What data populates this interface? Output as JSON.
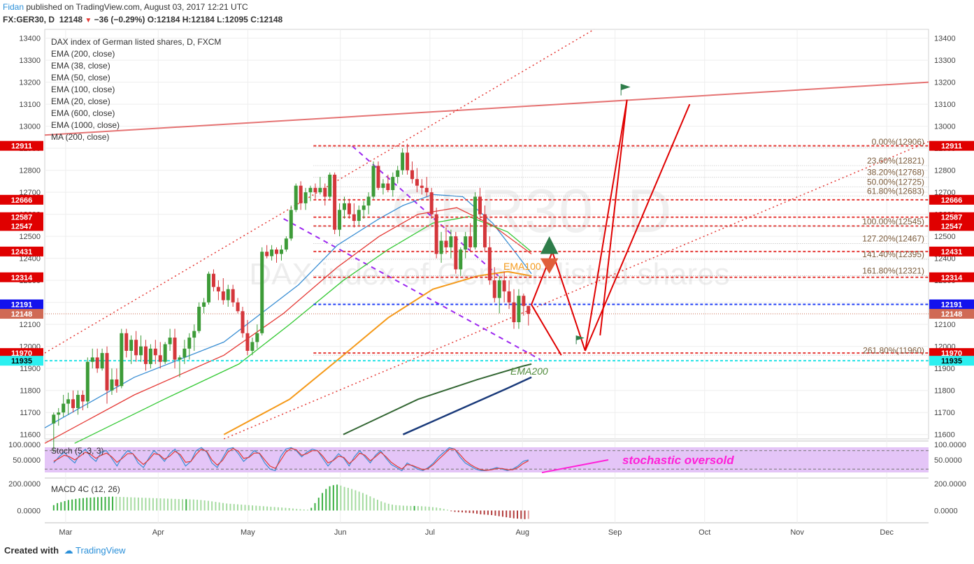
{
  "header": {
    "author": "Fidan",
    "published": "published on TradingView.com, August 03, 2017 12:21 UTC",
    "symbol": "FX:GER30, D",
    "last": "12148",
    "change": "−36 (−0.29%)",
    "open": "O:12184",
    "high": "H:12184",
    "low": "L:12095",
    "close": "C:12148"
  },
  "legend": {
    "title": "DAX index of German listed shares, D, FXCM",
    "studies": [
      "EMA (200, close)",
      "EMA (38, close)",
      "EMA (50, close)",
      "EMA (100, close)",
      "EMA (20, close)",
      "EMA (600, close)",
      "EMA (1000, close)",
      "MA (200, close)"
    ]
  },
  "watermark": {
    "symbol": "GER30, D",
    "description": "DAX index of German listed shares"
  },
  "footer": {
    "created_with": "Created with",
    "brand": "TradingView"
  },
  "colors": {
    "up": "#3d9b38",
    "down": "#d4363b",
    "red_level": "#e53935",
    "blue_level": "#1e3cf5",
    "cyan_level": "#26e3e6",
    "trend_red": "#e57373",
    "ema20": "#3b8fd4",
    "ema38": "#e53935",
    "ema50": "#34c934",
    "ema100": "#f59a1a",
    "ema200": "#336633",
    "ema600": "#1a3a7a",
    "stoch_fill": "#e4c5f7",
    "annotation": "#ff20d8",
    "flag": "#2e7d4a"
  },
  "chart_data": {
    "type": "candlestick",
    "title": "DAX index of German listed shares, D, FXCM",
    "price_axis": {
      "ticks": [
        11600,
        11700,
        11800,
        11900,
        12000,
        12100,
        12200,
        12300,
        12400,
        12500,
        12600,
        12700,
        12800,
        12900,
        13000,
        13100,
        13200,
        13300,
        13400
      ],
      "range": [
        11580,
        13440
      ]
    },
    "time_axis": {
      "labels": [
        "Mar",
        "Apr",
        "May",
        "Jun",
        "Jul",
        "Aug",
        "Sep",
        "Oct",
        "Nov",
        "Dec"
      ],
      "range_days": [
        -160,
        136
      ]
    },
    "candles_ohlc": [
      [
        11650,
        11700,
        11520,
        11690
      ],
      [
        11690,
        11720,
        11640,
        11700
      ],
      [
        11700,
        11780,
        11680,
        11740
      ],
      [
        11740,
        11790,
        11690,
        11760
      ],
      [
        11760,
        11800,
        11700,
        11720
      ],
      [
        11720,
        11800,
        11690,
        11780
      ],
      [
        11780,
        11800,
        11710,
        11750
      ],
      [
        11750,
        11950,
        11720,
        11930
      ],
      [
        11930,
        11990,
        11900,
        11950
      ],
      [
        11950,
        11990,
        11880,
        11900
      ],
      [
        11900,
        11990,
        11890,
        11970
      ],
      [
        11970,
        12000,
        11740,
        11800
      ],
      [
        11800,
        11900,
        11780,
        11850
      ],
      [
        11850,
        11900,
        11790,
        11820
      ],
      [
        11820,
        12080,
        11810,
        12060
      ],
      [
        12060,
        12080,
        11950,
        11980
      ],
      [
        11980,
        12050,
        11920,
        12030
      ],
      [
        12030,
        12070,
        11930,
        11960
      ],
      [
        11960,
        12050,
        11930,
        12000
      ],
      [
        12000,
        12030,
        11890,
        11920
      ],
      [
        11920,
        12010,
        11900,
        11990
      ],
      [
        11990,
        12030,
        11920,
        11960
      ],
      [
        11960,
        12020,
        11900,
        11930
      ],
      [
        11930,
        12020,
        11920,
        12010
      ],
      [
        12010,
        12080,
        11980,
        12040
      ],
      [
        12040,
        12080,
        11900,
        11940
      ],
      [
        11940,
        11960,
        11860,
        11950
      ],
      [
        11950,
        12030,
        11920,
        11990
      ],
      [
        11990,
        12060,
        11940,
        12040
      ],
      [
        12040,
        12100,
        11980,
        12070
      ],
      [
        12070,
        12200,
        12060,
        12180
      ],
      [
        12180,
        12220,
        12150,
        12200
      ],
      [
        12200,
        12340,
        12190,
        12330
      ],
      [
        12330,
        12350,
        12250,
        12270
      ],
      [
        12270,
        12300,
        12210,
        12250
      ],
      [
        12250,
        12310,
        12190,
        12210
      ],
      [
        12210,
        12280,
        12180,
        12260
      ],
      [
        12260,
        12280,
        12180,
        12200
      ],
      [
        12200,
        12220,
        12150,
        12160
      ],
      [
        12160,
        12180,
        12040,
        12060
      ],
      [
        12060,
        12120,
        11960,
        11980
      ],
      [
        11980,
        12040,
        11960,
        12020
      ],
      [
        12020,
        12100,
        11990,
        12060
      ],
      [
        12060,
        12450,
        12050,
        12430
      ],
      [
        12430,
        12460,
        12400,
        12410
      ],
      [
        12410,
        12460,
        12390,
        12440
      ],
      [
        12440,
        12450,
        12380,
        12420
      ],
      [
        12420,
        12460,
        12390,
        12440
      ],
      [
        12440,
        12500,
        12430,
        12490
      ],
      [
        12490,
        12640,
        12480,
        12620
      ],
      [
        12620,
        12740,
        12610,
        12730
      ],
      [
        12730,
        12750,
        12620,
        12650
      ],
      [
        12650,
        12720,
        12620,
        12700
      ],
      [
        12700,
        12730,
        12660,
        12720
      ],
      [
        12720,
        12740,
        12670,
        12700
      ],
      [
        12700,
        12770,
        12690,
        12720
      ],
      [
        12720,
        12740,
        12640,
        12680
      ],
      [
        12680,
        12790,
        12670,
        12780
      ],
      [
        12780,
        12790,
        12510,
        12530
      ],
      [
        12530,
        12650,
        12500,
        12620
      ],
      [
        12620,
        12680,
        12580,
        12650
      ],
      [
        12650,
        12670,
        12580,
        12600
      ],
      [
        12600,
        12650,
        12540,
        12570
      ],
      [
        12570,
        12640,
        12550,
        12620
      ],
      [
        12620,
        12660,
        12580,
        12640
      ],
      [
        12640,
        12700,
        12600,
        12680
      ],
      [
        12680,
        12840,
        12670,
        12820
      ],
      [
        12820,
        12840,
        12710,
        12720
      ],
      [
        12720,
        12760,
        12690,
        12740
      ],
      [
        12740,
        12780,
        12700,
        12710
      ],
      [
        12710,
        12790,
        12680,
        12770
      ],
      [
        12770,
        12820,
        12740,
        12800
      ],
      [
        12800,
        12900,
        12780,
        12880
      ],
      [
        12880,
        12920,
        12780,
        12800
      ],
      [
        12800,
        12840,
        12740,
        12760
      ],
      [
        12760,
        12810,
        12700,
        12730
      ],
      [
        12730,
        12760,
        12690,
        12720
      ],
      [
        12720,
        12770,
        12680,
        12700
      ],
      [
        12700,
        12720,
        12580,
        12600
      ],
      [
        12600,
        12630,
        12400,
        12420
      ],
      [
        12420,
        12520,
        12380,
        12480
      ],
      [
        12480,
        12540,
        12420,
        12450
      ],
      [
        12450,
        12530,
        12400,
        12500
      ],
      [
        12500,
        12520,
        12330,
        12350
      ],
      [
        12350,
        12450,
        12320,
        12440
      ],
      [
        12440,
        12520,
        12400,
        12500
      ],
      [
        12500,
        12560,
        12430,
        12450
      ],
      [
        12450,
        12700,
        12440,
        12680
      ],
      [
        12680,
        12720,
        12570,
        12600
      ],
      [
        12600,
        12640,
        12430,
        12450
      ],
      [
        12450,
        12500,
        12280,
        12300
      ],
      [
        12300,
        12360,
        12200,
        12220
      ],
      [
        12220,
        12320,
        12150,
        12300
      ],
      [
        12300,
        12340,
        12200,
        12250
      ],
      [
        12250,
        12300,
        12170,
        12200
      ],
      [
        12200,
        12260,
        12080,
        12110
      ],
      [
        12110,
        12260,
        12080,
        12230
      ],
      [
        12230,
        12240,
        12140,
        12184
      ],
      [
        12184,
        12184,
        12095,
        12148
      ]
    ],
    "levels": [
      {
        "price": 12911,
        "color": "red",
        "label": "12911"
      },
      {
        "price": 12666,
        "color": "red",
        "label": "12666"
      },
      {
        "price": 12587,
        "color": "red",
        "label": "12587"
      },
      {
        "price": 12547,
        "color": "red",
        "label": "12547"
      },
      {
        "price": 12431,
        "color": "red",
        "label": "12431"
      },
      {
        "price": 12314,
        "color": "red",
        "label": "12314"
      },
      {
        "price": 12191,
        "color": "blue",
        "label": "12191"
      },
      {
        "price": 12148,
        "color": "current",
        "label": "12148"
      },
      {
        "price": 11970,
        "color": "red",
        "label": "11970"
      },
      {
        "price": 11935,
        "color": "cyan",
        "label": "11935"
      }
    ],
    "fibonacci": [
      {
        "price": 12906,
        "label": "0.00%(12906)"
      },
      {
        "price": 12821,
        "label": "23.60%(12821)"
      },
      {
        "price": 12768,
        "label": "38.20%(12768)"
      },
      {
        "price": 12725,
        "label": "50.00%(12725)"
      },
      {
        "price": 12683,
        "label": "61.80%(12683)"
      },
      {
        "price": 12545,
        "label": "100.00%(12545)"
      },
      {
        "price": 12467,
        "label": "127.20%(12467)"
      },
      {
        "price": 12395,
        "label": "141.40%(12395)"
      },
      {
        "price": 12321,
        "label": "161.80%(12321)"
      },
      {
        "price": 11960,
        "label": "261.80%(11960)"
      }
    ],
    "annotations": [
      "EMA100",
      "EMA200"
    ],
    "stochastic": {
      "title": "Stoch (5, 3, 3)",
      "ticks": [
        "100.0000",
        "50.0000"
      ],
      "range": [
        0,
        100
      ],
      "band": [
        20,
        80
      ],
      "k": [
        40,
        60,
        75,
        55,
        40,
        70,
        85,
        60,
        45,
        75,
        80,
        55,
        30,
        60,
        80,
        70,
        40,
        25,
        55,
        80,
        65,
        45,
        70,
        85,
        60,
        30,
        45,
        80,
        90,
        75,
        40,
        25,
        55,
        85,
        90,
        70,
        45,
        60,
        80,
        70,
        40,
        20,
        15,
        60,
        85,
        90,
        80,
        60,
        75,
        85,
        80,
        55,
        30,
        50,
        70,
        55,
        30,
        60,
        80,
        60,
        40,
        65,
        80,
        55,
        35,
        25,
        15,
        40,
        30,
        20,
        15,
        25,
        40,
        60,
        75,
        90,
        85,
        60,
        40,
        30,
        20,
        15,
        15,
        20,
        25,
        20,
        15,
        20,
        30,
        45,
        50
      ],
      "d": [
        45,
        55,
        65,
        60,
        50,
        62,
        75,
        68,
        55,
        65,
        72,
        60,
        42,
        55,
        70,
        70,
        50,
        35,
        50,
        70,
        67,
        52,
        62,
        78,
        67,
        42,
        45,
        68,
        85,
        78,
        50,
        33,
        48,
        75,
        87,
        78,
        55,
        58,
        72,
        72,
        50,
        30,
        22,
        48,
        75,
        87,
        83,
        65,
        70,
        80,
        80,
        62,
        40,
        48,
        62,
        58,
        38,
        52,
        72,
        65,
        47,
        60,
        75,
        60,
        42,
        30,
        20,
        35,
        32,
        25,
        18,
        22,
        35,
        52,
        68,
        85,
        85,
        68,
        48,
        35,
        25,
        18,
        16,
        18,
        22,
        22,
        18,
        18,
        25,
        38,
        47
      ]
    },
    "macd": {
      "title": "MACD 4C (12, 26)",
      "ticks": [
        "200.0000",
        "0.0000"
      ],
      "range": [
        -70,
        220
      ],
      "histogram": [
        40,
        55,
        62,
        70,
        78,
        82,
        86,
        90,
        92,
        95,
        96,
        98,
        99,
        100,
        101,
        102,
        103,
        102,
        101,
        100,
        99,
        98,
        97,
        96,
        95,
        94,
        93,
        92,
        91,
        90,
        89,
        88,
        87,
        86,
        85,
        84,
        84,
        83,
        82,
        80,
        78,
        75,
        72,
        68,
        64,
        60,
        56,
        52,
        50,
        48,
        46,
        44,
        42,
        40,
        38,
        36,
        34,
        32,
        30,
        28,
        26,
        24,
        22,
        20,
        18,
        15,
        12,
        10,
        8,
        6,
        20,
        55,
        95,
        130,
        160,
        180,
        188,
        192,
        185,
        175,
        168,
        160,
        150,
        140,
        130,
        118,
        105,
        92,
        80,
        68,
        58,
        50,
        44,
        40,
        38,
        36,
        35,
        34,
        34,
        33,
        32,
        30,
        28,
        25,
        22,
        18,
        12,
        6,
        -2,
        -10,
        -12,
        -14,
        -16,
        -18,
        -20,
        -24,
        -28,
        -30,
        -32,
        -34,
        -38,
        -42,
        -46,
        -50,
        -54,
        -58,
        -60,
        -62,
        -64,
        -62
      ]
    }
  },
  "callout": {
    "text": "stochastic oversold"
  }
}
